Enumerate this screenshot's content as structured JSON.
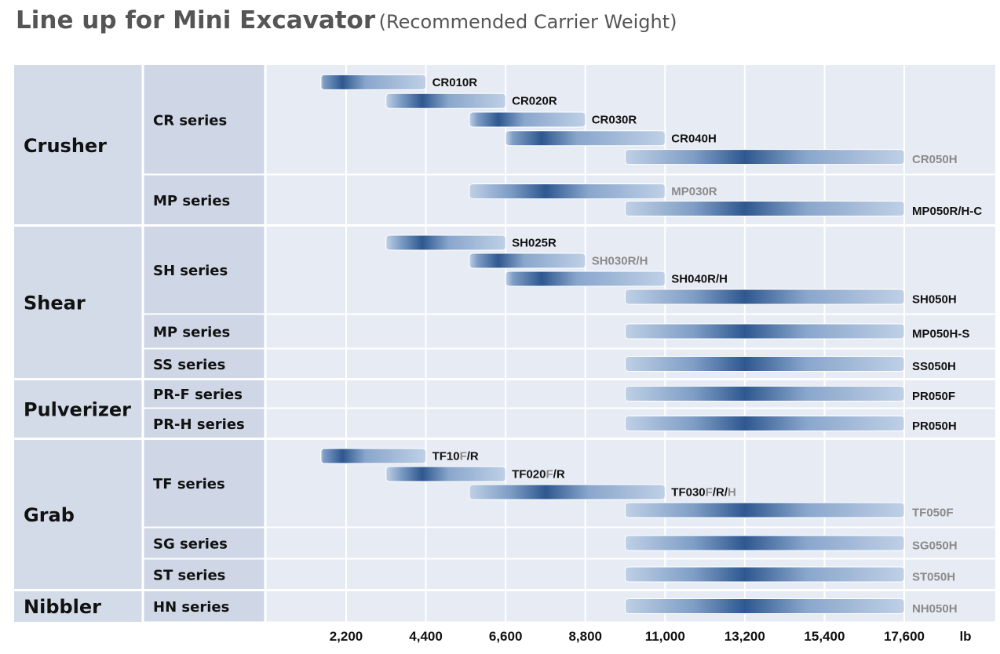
{
  "title": "Line up for Mini Excavator",
  "subtitle": "(Recommended Carrier Weight)",
  "colors": {
    "dark": "#2f5890",
    "light": "#bfd0e6",
    "label_dark": "#111111",
    "label_gray": "#8a8a8a"
  },
  "chart_data": {
    "type": "range-bar",
    "unit": "lb",
    "x_ticks": [
      "2,200",
      "4,400",
      "6,600",
      "8,800",
      "11,000",
      "13,200",
      "15,400",
      "17,600"
    ],
    "x_tick_values": [
      2200,
      4400,
      6600,
      8800,
      11000,
      13200,
      15400,
      17600
    ],
    "xlim": [
      0,
      20000
    ],
    "grid": true,
    "categories": [
      {
        "name": "Crusher",
        "series": [
          {
            "name": "CR series",
            "items": [
              {
                "label": [
                  [
                    "CR010R",
                    "dark"
                  ]
                ],
                "min": 1500,
                "max": 4400,
                "peak": 2100
              },
              {
                "label": [
                  [
                    "CR020R",
                    "dark"
                  ]
                ],
                "min": 3300,
                "max": 6600,
                "peak": 4300
              },
              {
                "label": [
                  [
                    "CR030R",
                    "dark"
                  ]
                ],
                "min": 5600,
                "max": 8800,
                "peak": 6400
              },
              {
                "label": [
                  [
                    "CR040H",
                    "dark"
                  ]
                ],
                "min": 6600,
                "max": 11000,
                "peak": 7600
              },
              {
                "label": [
                  [
                    "CR050H",
                    "gray"
                  ]
                ],
                "min": 9900,
                "max": 17600,
                "peak": 13200
              }
            ]
          },
          {
            "name": "MP series",
            "items": [
              {
                "label": [
                  [
                    "MP030R",
                    "gray"
                  ]
                ],
                "min": 5600,
                "max": 11000,
                "peak": 7700
              },
              {
                "label": [
                  [
                    "MP050R/H-C",
                    "dark"
                  ]
                ],
                "min": 9900,
                "max": 17600,
                "peak": 13200
              }
            ]
          }
        ]
      },
      {
        "name": "Shear",
        "series": [
          {
            "name": "SH series",
            "items": [
              {
                "label": [
                  [
                    "SH025R",
                    "dark"
                  ]
                ],
                "min": 3300,
                "max": 6600,
                "peak": 4300
              },
              {
                "label": [
                  [
                    "SH030R/H",
                    "gray"
                  ]
                ],
                "min": 5600,
                "max": 8800,
                "peak": 6400
              },
              {
                "label": [
                  [
                    "SH040R/H",
                    "dark"
                  ]
                ],
                "min": 6600,
                "max": 11000,
                "peak": 7600
              },
              {
                "label": [
                  [
                    "SH050H",
                    "dark"
                  ]
                ],
                "min": 9900,
                "max": 17600,
                "peak": 13200
              }
            ]
          },
          {
            "name": "MP series",
            "items": [
              {
                "label": [
                  [
                    "MP050H-S",
                    "dark"
                  ]
                ],
                "min": 9900,
                "max": 17600,
                "peak": 13200
              }
            ]
          },
          {
            "name": "SS series",
            "items": [
              {
                "label": [
                  [
                    "SS050H",
                    "dark"
                  ]
                ],
                "min": 9900,
                "max": 17600,
                "peak": 13200
              }
            ]
          }
        ]
      },
      {
        "name": "Pulverizer",
        "series": [
          {
            "name": "PR-F series",
            "items": [
              {
                "label": [
                  [
                    "PR050F",
                    "dark"
                  ]
                ],
                "min": 9900,
                "max": 17600,
                "peak": 13200
              }
            ]
          },
          {
            "name": "PR-H series",
            "items": [
              {
                "label": [
                  [
                    "PR050H",
                    "dark"
                  ]
                ],
                "min": 9900,
                "max": 17600,
                "peak": 13200
              }
            ]
          }
        ]
      },
      {
        "name": "Grab",
        "series": [
          {
            "name": "TF series",
            "items": [
              {
                "label": [
                  [
                    "TF10",
                    "dark"
                  ],
                  [
                    "F",
                    "gray"
                  ],
                  [
                    "/R",
                    "dark"
                  ]
                ],
                "min": 1500,
                "max": 4400,
                "peak": 2100
              },
              {
                "label": [
                  [
                    "TF020",
                    "dark"
                  ],
                  [
                    "F",
                    "gray"
                  ],
                  [
                    "/R",
                    "dark"
                  ]
                ],
                "min": 3300,
                "max": 6600,
                "peak": 4300
              },
              {
                "label": [
                  [
                    "TF030",
                    "dark"
                  ],
                  [
                    "F",
                    "gray"
                  ],
                  [
                    "/R/",
                    "dark"
                  ],
                  [
                    "H",
                    "gray"
                  ]
                ],
                "min": 5600,
                "max": 11000,
                "peak": 7700
              },
              {
                "label": [
                  [
                    "TF050F",
                    "gray"
                  ]
                ],
                "min": 9900,
                "max": 17600,
                "peak": 13200
              }
            ]
          },
          {
            "name": "SG series",
            "items": [
              {
                "label": [
                  [
                    "SG050H",
                    "gray"
                  ]
                ],
                "min": 9900,
                "max": 17600,
                "peak": 13200
              }
            ]
          },
          {
            "name": "ST series",
            "items": [
              {
                "label": [
                  [
                    "ST050H",
                    "gray"
                  ]
                ],
                "min": 9900,
                "max": 17600,
                "peak": 13200
              }
            ]
          }
        ]
      },
      {
        "name": "Nibbler",
        "series": [
          {
            "name": "HN series",
            "items": [
              {
                "label": [
                  [
                    "NH050H",
                    "gray"
                  ]
                ],
                "min": 9900,
                "max": 17600,
                "peak": 13200
              }
            ]
          }
        ]
      }
    ]
  }
}
